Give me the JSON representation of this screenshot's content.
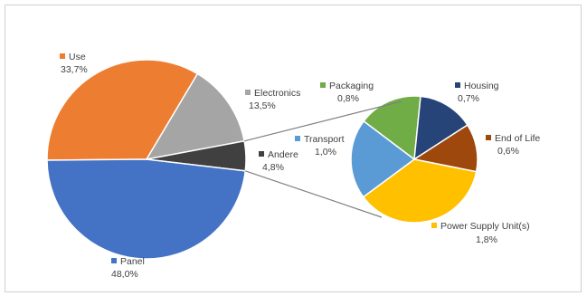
{
  "chart_data": {
    "type": "pie",
    "subtype": "pie-of-pie",
    "colors": {
      "Use": "#ED7D31",
      "Electronics": "#A5A5A5",
      "Andere": "#404040",
      "Panel": "#4472C4",
      "Packaging": "#70AD47",
      "Housing": "#264478",
      "End of Life": "#9E480E",
      "Power Supply Unit(s)": "#FFC000",
      "Transport": "#5B9BD5"
    },
    "main": {
      "slices": [
        {
          "label": "Use",
          "value_label": "33,7%",
          "value": 33.7
        },
        {
          "label": "Electronics",
          "value_label": "13,5%",
          "value": 13.5
        },
        {
          "label": "Andere",
          "value_label": "4,8%",
          "value": 4.8
        },
        {
          "label": "Panel",
          "value_label": "48,0%",
          "value": 48.0
        }
      ]
    },
    "secondary": {
      "slices": [
        {
          "label": "Packaging",
          "value_label": "0,8%",
          "value": 0.8
        },
        {
          "label": "Housing",
          "value_label": "0,7%",
          "value": 0.7
        },
        {
          "label": "End of Life",
          "value_label": "0,6%",
          "value": 0.6
        },
        {
          "label": "Power Supply Unit(s)",
          "value_label": "1,8%",
          "value": 1.8
        },
        {
          "label": "Transport",
          "value_label": "1,0%",
          "value": 1.0
        }
      ]
    }
  }
}
